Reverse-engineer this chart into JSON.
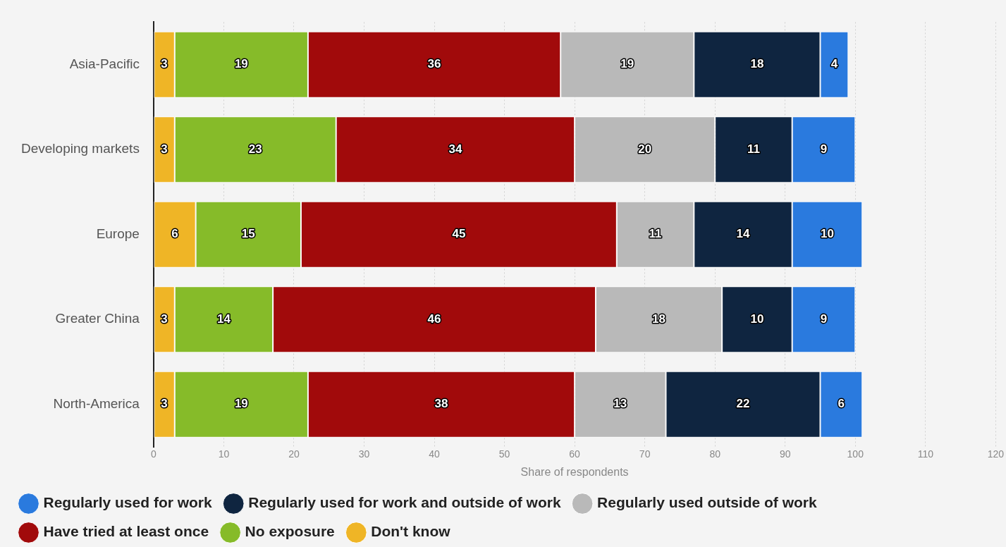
{
  "chart_data": {
    "type": "bar",
    "orientation": "horizontal",
    "stacked": true,
    "xlabel": "Share of respondents",
    "categories": [
      "Asia-Pacific",
      "Developing markets",
      "Europe",
      "Greater China",
      "North-America"
    ],
    "series": [
      {
        "name": "Don't know",
        "color": "#efb526",
        "values": [
          3,
          3,
          6,
          3,
          3
        ]
      },
      {
        "name": "No exposure",
        "color": "#86bb29",
        "values": [
          19,
          23,
          15,
          14,
          19
        ]
      },
      {
        "name": "Have tried at least once",
        "color": "#a10a0b",
        "values": [
          36,
          34,
          45,
          46,
          38
        ]
      },
      {
        "name": "Regularly used outside of work",
        "color": "#b9b9b9",
        "values": [
          19,
          20,
          11,
          18,
          13
        ]
      },
      {
        "name": "Regularly used for work and outside of work",
        "color": "#0f2540",
        "values": [
          18,
          11,
          14,
          10,
          22
        ]
      },
      {
        "name": "Regularly used for work",
        "color": "#2a7ade",
        "values": [
          4,
          9,
          10,
          9,
          6
        ]
      }
    ],
    "xlim": [
      0,
      120
    ],
    "xticks": [
      0,
      10,
      20,
      30,
      40,
      50,
      60,
      70,
      80,
      90,
      100,
      110,
      120
    ],
    "grid": "x",
    "legend": "bottom",
    "data_labels": true
  }
}
